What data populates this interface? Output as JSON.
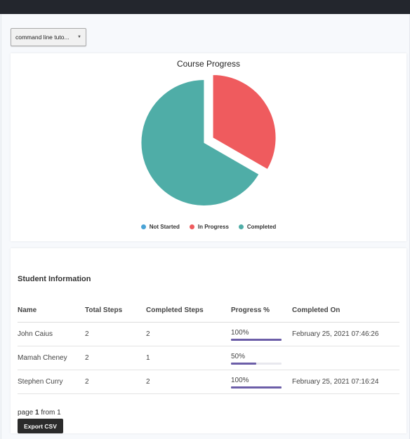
{
  "filter": {
    "selected": "command line tuto..."
  },
  "chart_data": {
    "type": "pie",
    "title": "Course Progress",
    "categories": [
      "Not Started",
      "In Progress",
      "Completed"
    ],
    "values": [
      0,
      1,
      2
    ],
    "colors": [
      "#4aa3d6",
      "#ef5b5e",
      "#4fada7"
    ],
    "legend": "bottom"
  },
  "student_info": {
    "title": "Student Information",
    "columns": [
      "Name",
      "Total Steps",
      "Completed Steps",
      "Progress %",
      "Completed On"
    ],
    "rows": [
      {
        "name": "John Caius",
        "total": "2",
        "completed": "2",
        "progress_label": "100%",
        "progress": 100,
        "completed_on": "February 25, 2021 07:46:26"
      },
      {
        "name": "Mamah Cheney",
        "total": "2",
        "completed": "1",
        "progress_label": "50%",
        "progress": 50,
        "completed_on": ""
      },
      {
        "name": "Stephen Curry",
        "total": "2",
        "completed": "2",
        "progress_label": "100%",
        "progress": 100,
        "completed_on": "February 25, 2021 07:16:24"
      }
    ],
    "progress_color": "#6c5ea8"
  },
  "pagination": {
    "prefix": "page",
    "current": "1",
    "middle": "from",
    "total": "1"
  },
  "actions": {
    "export_label": "Export CSV"
  }
}
